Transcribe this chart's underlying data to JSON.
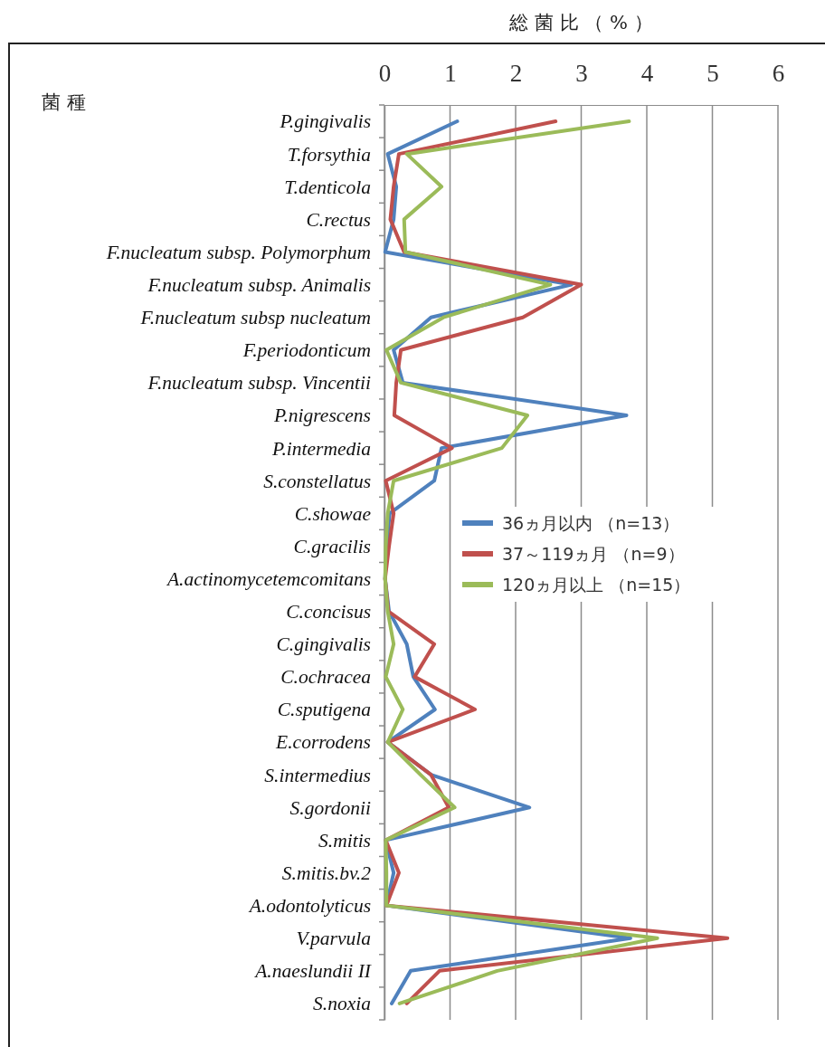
{
  "chart_data": {
    "type": "line",
    "orientation": "horizontal",
    "xlabel": "総 菌 比 （ % ）",
    "ylabel": "菌 種",
    "categories": [
      "P.gingivalis",
      "T.forsythia",
      "T.denticola",
      "C.rectus",
      "F.nucleatum subsp. Polymorphum",
      "F.nucleatum subsp. Animalis",
      "F.nucleatum subsp nucleatum",
      "F.periodonticum",
      "F.nucleatum subsp. Vincentii",
      "P.nigrescens",
      "P.intermedia",
      "S.constellatus",
      "C.showae",
      "C.gracilis",
      "A.actinomycetemcomitans",
      "C.concisus",
      "C.gingivalis",
      "C.ochracea",
      "C.sputigena",
      "E.corrodens",
      "S.intermedius",
      "S.gordonii",
      "S.mitis",
      "S.mitis.bv.2",
      "A.odontolyticus",
      "V.parvula",
      "A.naeslundii II",
      "S.noxia"
    ],
    "series": [
      {
        "name": "36ヵ月以内 （n=13）",
        "color": "#4f81bd",
        "values": [
          1.11,
          0.05,
          0.18,
          0.14,
          0.01,
          2.85,
          0.71,
          0.14,
          0.28,
          3.69,
          0.87,
          0.76,
          0.08,
          0.03,
          0.01,
          0.07,
          0.34,
          0.44,
          0.77,
          0.05,
          0.71,
          2.21,
          0.02,
          0.14,
          0.03,
          3.75,
          0.4,
          0.11
        ]
      },
      {
        "name": "37～119ヵ月 （n=9）",
        "color": "#c0504d",
        "values": [
          2.61,
          0.22,
          0.14,
          0.09,
          0.3,
          3.0,
          2.11,
          0.25,
          0.18,
          0.15,
          1.03,
          0.02,
          0.14,
          0.07,
          0.01,
          0.06,
          0.76,
          0.46,
          1.38,
          0.05,
          0.71,
          0.98,
          0.02,
          0.22,
          0.03,
          5.23,
          0.84,
          0.34
        ]
      },
      {
        "name": "120ヵ月以上 （n=15）",
        "color": "#9bbb59",
        "values": [
          3.73,
          0.34,
          0.87,
          0.3,
          0.32,
          2.53,
          0.9,
          0.03,
          0.25,
          2.18,
          1.79,
          0.14,
          0.05,
          0.02,
          0.01,
          0.05,
          0.14,
          0.02,
          0.28,
          0.05,
          0.55,
          1.07,
          0.02,
          0.03,
          0.03,
          4.16,
          1.72,
          0.23
        ]
      }
    ],
    "xlim": [
      0,
      6
    ],
    "xticks": [
      0,
      1,
      2,
      3,
      4,
      5,
      6
    ],
    "grid": "x",
    "legend": "right",
    "marker": "none",
    "line_style": "solid"
  }
}
